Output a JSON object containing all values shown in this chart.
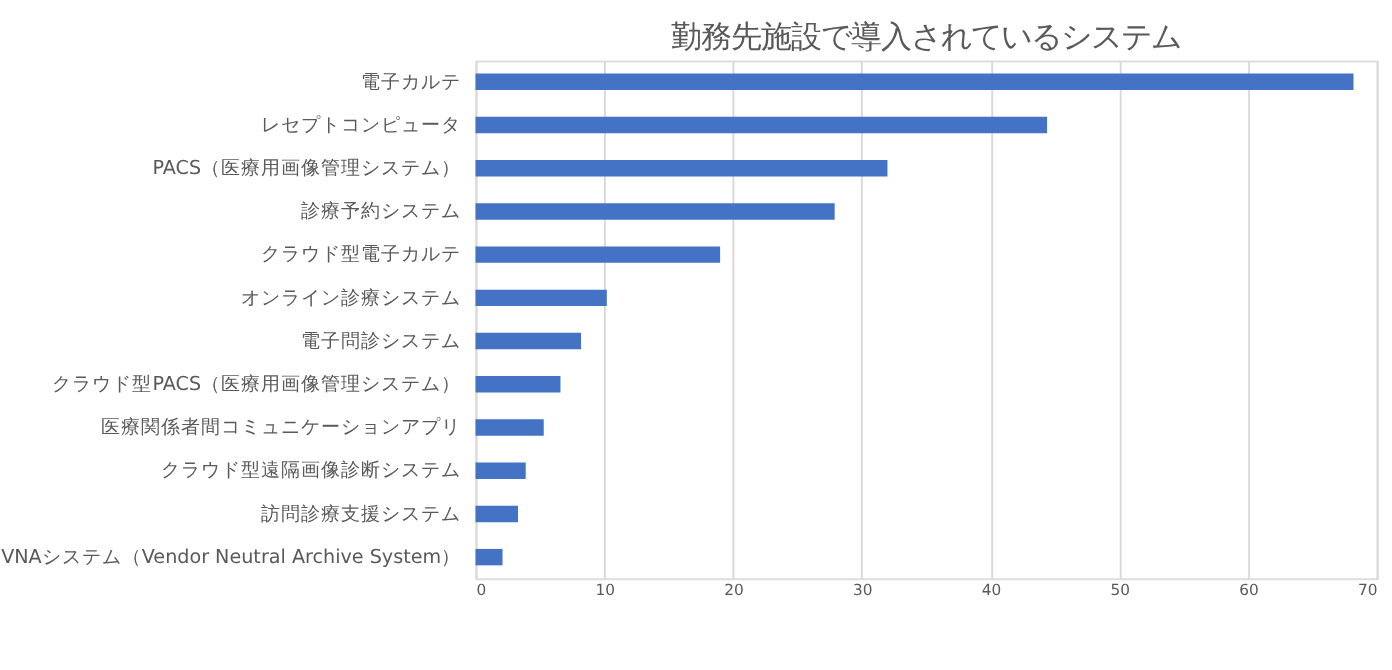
{
  "chart_data": {
    "type": "bar",
    "orientation": "horizontal",
    "title": "勤務先施設で導入されているシステム",
    "categories": [
      "電子カルテ",
      "レセプトコンピュータ",
      "PACS（医療用画像管理システム）",
      "診療予約システム",
      "クラウド型電子カルテ",
      "オンライン診療システム",
      "電子問診システム",
      "クラウド型PACS（医療用画像管理システム）",
      "医療関係者間コミュニケーションアプリ",
      "クラウド型遠隔画像診断システム",
      "訪問診療支援システム",
      "VNAシステム（Vendor Neutral Archive System）"
    ],
    "values": [
      68.2,
      44.4,
      32.0,
      27.9,
      19.0,
      10.2,
      8.2,
      6.6,
      5.3,
      3.9,
      3.3,
      2.1
    ],
    "color": "#4472c4",
    "xlim": [
      0,
      70
    ],
    "xticks": [
      0,
      10,
      20,
      30,
      40,
      50,
      60,
      70
    ],
    "grid": "x"
  }
}
